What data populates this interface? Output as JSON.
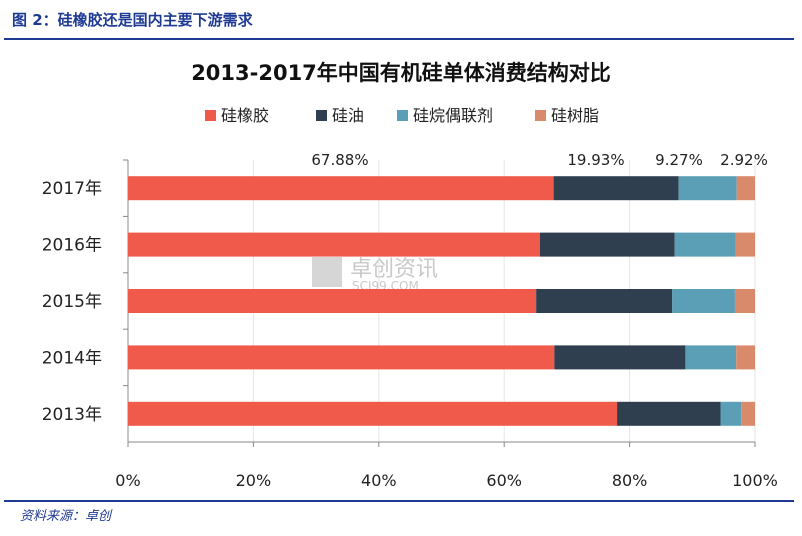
{
  "figure": {
    "caption": "图 2：硅橡胶还是国内主要下游需求",
    "source": "资料来源：卓创"
  },
  "watermark": {
    "name": "卓创资讯",
    "site": "SCI99.COM"
  },
  "chart_data": {
    "type": "bar",
    "orientation": "horizontal",
    "stacked": true,
    "title": "2013-2017年中国有机硅单体消费结构对比",
    "categories": [
      "2017年",
      "2016年",
      "2015年",
      "2014年",
      "2013年"
    ],
    "series": [
      {
        "name": "硅橡胶",
        "color": "#f05a4a",
        "values": [
          67.88,
          65.7,
          65.1,
          68.0,
          78.0
        ]
      },
      {
        "name": "硅油",
        "color": "#2f3f4f",
        "values": [
          19.93,
          21.5,
          21.7,
          20.9,
          16.5
        ]
      },
      {
        "name": "硅烷偶联剂",
        "color": "#5b9fb6",
        "values": [
          9.27,
          9.7,
          10.0,
          8.1,
          3.3
        ]
      },
      {
        "name": "硅树脂",
        "color": "#d98a6a",
        "values": [
          2.92,
          3.1,
          3.2,
          3.0,
          2.2
        ]
      }
    ],
    "data_labels": [
      "67.88%",
      "19.93%",
      "9.27%",
      "2.92%"
    ],
    "xlim": [
      0,
      100
    ],
    "xticks": [
      "0%",
      "20%",
      "40%",
      "60%",
      "80%",
      "100%"
    ],
    "legend_position": "top",
    "grid": "vertical"
  }
}
